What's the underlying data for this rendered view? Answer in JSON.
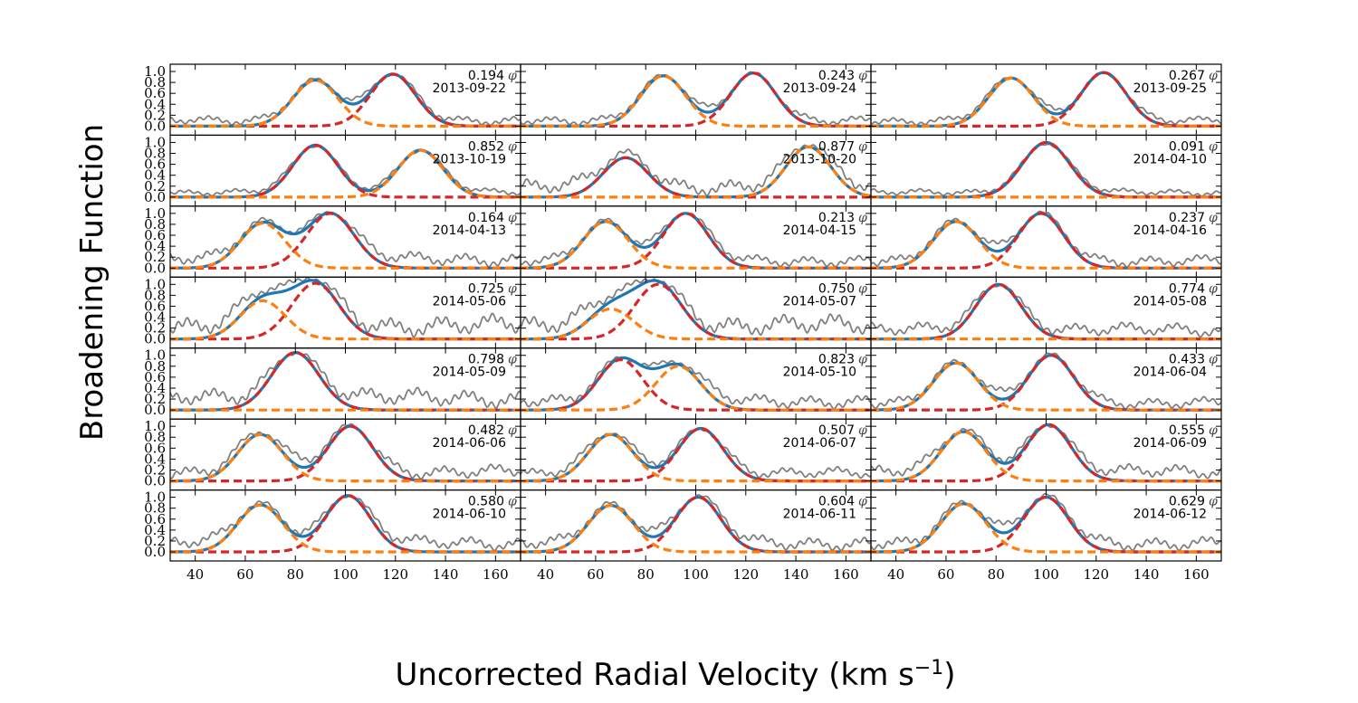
{
  "figure": {
    "ylabel": "Broadening Function",
    "xlabel_main": "Uncorrected Radial Velocity (km s",
    "xlabel_sup": "−1",
    "xlabel_close": ")"
  },
  "chart_data": {
    "type": "line",
    "layout": "7x3 grid of broadening-function panels",
    "xlim": [
      30,
      170
    ],
    "ylim": [
      0.0,
      1.0
    ],
    "xticks": [
      40,
      60,
      80,
      100,
      120,
      140,
      160
    ],
    "yticks": [
      0.0,
      0.2,
      0.4,
      0.6,
      0.8,
      1.0
    ],
    "ytick_labels": [
      "0.0",
      "0.2",
      "0.4",
      "0.6",
      "0.8",
      "1.0"
    ],
    "phase_symbol": "φ",
    "series_styles": {
      "observed": "#808080",
      "total_fit": "#1f77b4",
      "primary_component": "#d62728",
      "secondary_component": "#ff7f0e"
    },
    "panels": [
      {
        "phase": "0.194",
        "date": "2013-09-22",
        "primary": {
          "center": 119,
          "amp": 0.95,
          "sigma": 9.0
        },
        "secondary": {
          "center": 88,
          "amp": 0.84,
          "sigma": 9.0
        },
        "noise": 0.2
      },
      {
        "phase": "0.243",
        "date": "2013-09-24",
        "primary": {
          "center": 123,
          "amp": 0.97,
          "sigma": 9.0
        },
        "secondary": {
          "center": 87,
          "amp": 0.92,
          "sigma": 9.0
        },
        "noise": 0.2
      },
      {
        "phase": "0.267",
        "date": "2013-09-25",
        "primary": {
          "center": 123,
          "amp": 0.98,
          "sigma": 9.0
        },
        "secondary": {
          "center": 86,
          "amp": 0.88,
          "sigma": 9.0
        },
        "noise": 0.18
      },
      {
        "phase": "0.852",
        "date": "2013-10-19",
        "primary": {
          "center": 88,
          "amp": 0.95,
          "sigma": 9.0
        },
        "secondary": {
          "center": 130,
          "amp": 0.86,
          "sigma": 9.0
        },
        "noise": 0.15
      },
      {
        "phase": "0.877",
        "date": "2013-10-20",
        "primary": {
          "center": 72,
          "amp": 0.72,
          "sigma": 9.0
        },
        "secondary": {
          "center": 145,
          "amp": 0.92,
          "sigma": 9.0
        },
        "noise": 0.35
      },
      {
        "phase": "0.091",
        "date": "2014-04-10",
        "primary": {
          "center": 100,
          "amp": 1.0,
          "sigma": 9.5
        },
        "secondary": {
          "center": 100,
          "amp": 0.0,
          "sigma": 9.0
        },
        "noise": 0.15
      },
      {
        "phase": "0.164",
        "date": "2014-04-13",
        "primary": {
          "center": 94,
          "amp": 1.0,
          "sigma": 9.5
        },
        "secondary": {
          "center": 67,
          "amp": 0.82,
          "sigma": 9.0
        },
        "noise": 0.3
      },
      {
        "phase": "0.213",
        "date": "2014-04-15",
        "primary": {
          "center": 96,
          "amp": 1.0,
          "sigma": 9.0
        },
        "secondary": {
          "center": 64,
          "amp": 0.85,
          "sigma": 9.0
        },
        "noise": 0.25
      },
      {
        "phase": "0.237",
        "date": "2014-04-16",
        "primary": {
          "center": 98,
          "amp": 1.0,
          "sigma": 9.0
        },
        "secondary": {
          "center": 64,
          "amp": 0.85,
          "sigma": 9.0
        },
        "noise": 0.25
      },
      {
        "phase": "0.725",
        "date": "2014-05-06",
        "primary": {
          "center": 88,
          "amp": 1.02,
          "sigma": 9.5
        },
        "secondary": {
          "center": 67,
          "amp": 0.7,
          "sigma": 9.0
        },
        "noise": 0.45
      },
      {
        "phase": "0.750",
        "date": "2014-05-07",
        "primary": {
          "center": 85,
          "amp": 1.0,
          "sigma": 9.5
        },
        "secondary": {
          "center": 66,
          "amp": 0.55,
          "sigma": 9.0
        },
        "noise": 0.45
      },
      {
        "phase": "0.774",
        "date": "2014-05-08",
        "primary": {
          "center": 81,
          "amp": 1.0,
          "sigma": 9.0
        },
        "secondary": {
          "center": 81,
          "amp": 0.0,
          "sigma": 9.0
        },
        "noise": 0.3
      },
      {
        "phase": "0.798",
        "date": "2014-05-09",
        "primary": {
          "center": 80,
          "amp": 1.05,
          "sigma": 9.5
        },
        "secondary": {
          "center": 80,
          "amp": 0.0,
          "sigma": 9.0
        },
        "noise": 0.4
      },
      {
        "phase": "0.823",
        "date": "2014-05-10",
        "primary": {
          "center": 70,
          "amp": 0.92,
          "sigma": 9.0
        },
        "secondary": {
          "center": 93,
          "amp": 0.8,
          "sigma": 9.0
        },
        "noise": 0.3
      },
      {
        "phase": "0.433",
        "date": "2014-06-04",
        "primary": {
          "center": 102,
          "amp": 1.0,
          "sigma": 9.0
        },
        "secondary": {
          "center": 64,
          "amp": 0.86,
          "sigma": 9.0
        },
        "noise": 0.25
      },
      {
        "phase": "0.482",
        "date": "2014-06-06",
        "primary": {
          "center": 102,
          "amp": 1.0,
          "sigma": 9.0
        },
        "secondary": {
          "center": 66,
          "amp": 0.85,
          "sigma": 9.0
        },
        "noise": 0.3
      },
      {
        "phase": "0.507",
        "date": "2014-06-07",
        "primary": {
          "center": 102,
          "amp": 0.96,
          "sigma": 9.0
        },
        "secondary": {
          "center": 66,
          "amp": 0.85,
          "sigma": 9.0
        },
        "noise": 0.25
      },
      {
        "phase": "0.555",
        "date": "2014-06-09",
        "primary": {
          "center": 101,
          "amp": 1.03,
          "sigma": 9.0
        },
        "secondary": {
          "center": 67,
          "amp": 0.9,
          "sigma": 9.0
        },
        "noise": 0.3
      },
      {
        "phase": "0.580",
        "date": "2014-06-10",
        "primary": {
          "center": 101,
          "amp": 1.03,
          "sigma": 9.0
        },
        "secondary": {
          "center": 66,
          "amp": 0.86,
          "sigma": 9.0
        },
        "noise": 0.3
      },
      {
        "phase": "0.604",
        "date": "2014-06-11",
        "primary": {
          "center": 101,
          "amp": 1.0,
          "sigma": 9.0
        },
        "secondary": {
          "center": 66,
          "amp": 0.85,
          "sigma": 9.0
        },
        "noise": 0.3
      },
      {
        "phase": "0.629",
        "date": "2014-06-12",
        "primary": {
          "center": 100,
          "amp": 1.0,
          "sigma": 9.0
        },
        "secondary": {
          "center": 67,
          "amp": 0.88,
          "sigma": 9.0
        },
        "noise": 0.3
      }
    ]
  }
}
